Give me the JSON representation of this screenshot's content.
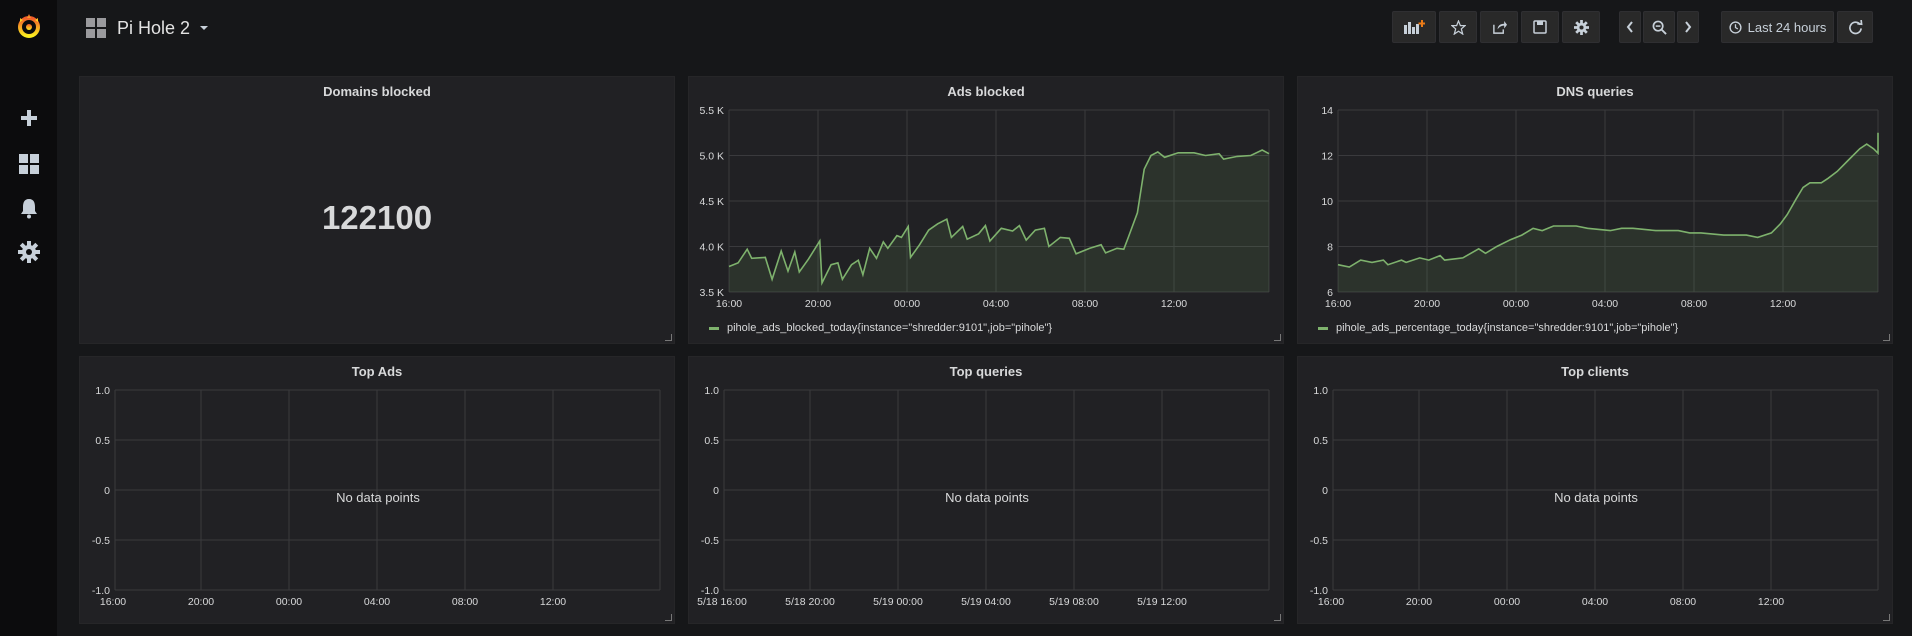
{
  "header": {
    "dashboard_title": "Pi Hole 2",
    "time_range_label": "Last 24 hours"
  },
  "sidebar": {
    "items": [
      {
        "name": "grafana-logo-icon"
      },
      {
        "name": "plus-icon"
      },
      {
        "name": "dashboards-icon"
      },
      {
        "name": "bell-icon"
      },
      {
        "name": "gear-icon"
      }
    ]
  },
  "toolbar": {
    "icons": [
      "add-panel-icon",
      "star-icon",
      "share-icon",
      "save-icon",
      "settings-icon",
      "chevron-left-icon",
      "zoom-out-icon",
      "chevron-right-icon",
      "clock-icon",
      "refresh-icon"
    ]
  },
  "colors": {
    "series_line": "#7eb26d",
    "panel_bg": "#212124",
    "page_bg": "#161719"
  },
  "panels": {
    "domains_blocked": {
      "title": "Domains blocked",
      "value": "122100"
    },
    "ads_blocked": {
      "title": "Ads blocked",
      "legend": "pihole_ads_blocked_today{instance=\"shredder:9101\",job=\"pihole\"}"
    },
    "dns_queries": {
      "title": "DNS queries",
      "legend": "pihole_ads_percentage_today{instance=\"shredder:9101\",job=\"pihole\"}"
    },
    "top_ads": {
      "title": "Top Ads",
      "no_data": "No data points"
    },
    "top_queries": {
      "title": "Top queries",
      "no_data": "No data points"
    },
    "top_clients": {
      "title": "Top clients",
      "no_data": "No data points"
    }
  },
  "chart_data": [
    {
      "panel": "Ads blocked",
      "type": "area",
      "x_ticks": [
        "16:00",
        "20:00",
        "00:00",
        "04:00",
        "08:00",
        "12:00"
      ],
      "y_ticks": [
        "5.5 K",
        "5.0 K",
        "4.5 K",
        "4.0 K",
        "3.5 K"
      ],
      "ylim": [
        3500,
        5500
      ],
      "xlim_hours": [
        0,
        23.8
      ],
      "grid": true,
      "legend_position": "bottom-left",
      "points": [
        [
          0,
          3780
        ],
        [
          0.4,
          3820
        ],
        [
          0.8,
          3970
        ],
        [
          1.0,
          3870
        ],
        [
          1.6,
          3880
        ],
        [
          1.9,
          3640
        ],
        [
          2.3,
          3950
        ],
        [
          2.6,
          3730
        ],
        [
          2.9,
          3940
        ],
        [
          3.1,
          3720
        ],
        [
          3.5,
          3860
        ],
        [
          4.0,
          4060
        ],
        [
          4.1,
          3600
        ],
        [
          4.5,
          3800
        ],
        [
          4.8,
          3820
        ],
        [
          5.0,
          3640
        ],
        [
          5.4,
          3800
        ],
        [
          5.7,
          3850
        ],
        [
          5.9,
          3690
        ],
        [
          6.2,
          3980
        ],
        [
          6.5,
          3870
        ],
        [
          6.8,
          4050
        ],
        [
          7.0,
          3980
        ],
        [
          7.4,
          4120
        ],
        [
          7.6,
          4100
        ],
        [
          7.9,
          4220
        ],
        [
          8.0,
          3880
        ],
        [
          8.4,
          4020
        ],
        [
          8.8,
          4180
        ],
        [
          9.2,
          4250
        ],
        [
          9.6,
          4300
        ],
        [
          9.8,
          4100
        ],
        [
          10.3,
          4220
        ],
        [
          10.5,
          4080
        ],
        [
          11.0,
          4140
        ],
        [
          11.3,
          4230
        ],
        [
          11.5,
          4060
        ],
        [
          12.0,
          4200
        ],
        [
          12.5,
          4170
        ],
        [
          12.8,
          4230
        ],
        [
          13.1,
          4070
        ],
        [
          13.5,
          4180
        ],
        [
          13.9,
          4200
        ],
        [
          14.1,
          4000
        ],
        [
          14.6,
          4100
        ],
        [
          15.0,
          4090
        ],
        [
          15.3,
          3920
        ],
        [
          15.9,
          3980
        ],
        [
          16.4,
          4020
        ],
        [
          16.6,
          3930
        ],
        [
          17.1,
          3980
        ],
        [
          17.4,
          3970
        ],
        [
          17.6,
          4100
        ],
        [
          18.0,
          4370
        ],
        [
          18.3,
          4850
        ],
        [
          18.6,
          5000
        ],
        [
          18.9,
          5040
        ],
        [
          19.2,
          4980
        ],
        [
          19.8,
          5030
        ],
        [
          20.5,
          5030
        ],
        [
          21.0,
          5000
        ],
        [
          21.6,
          5020
        ],
        [
          21.8,
          4960
        ],
        [
          22.4,
          4990
        ],
        [
          23.0,
          5000
        ],
        [
          23.5,
          5060
        ],
        [
          23.8,
          5020
        ]
      ]
    },
    {
      "panel": "DNS queries",
      "type": "area",
      "x_ticks": [
        "16:00",
        "20:00",
        "00:00",
        "04:00",
        "08:00",
        "12:00"
      ],
      "y_ticks": [
        "14",
        "12",
        "10",
        "8",
        "6"
      ],
      "ylim": [
        6,
        14
      ],
      "xlim_hours": [
        0,
        23.8
      ],
      "grid": true,
      "legend_position": "bottom-left",
      "points": [
        [
          0,
          7.2
        ],
        [
          0.5,
          7.1
        ],
        [
          1.0,
          7.4
        ],
        [
          1.5,
          7.3
        ],
        [
          2.0,
          7.4
        ],
        [
          2.2,
          7.2
        ],
        [
          2.8,
          7.4
        ],
        [
          3.0,
          7.3
        ],
        [
          3.6,
          7.5
        ],
        [
          4.0,
          7.4
        ],
        [
          4.5,
          7.6
        ],
        [
          4.7,
          7.4
        ],
        [
          5.5,
          7.5
        ],
        [
          6.2,
          7.9
        ],
        [
          6.5,
          7.7
        ],
        [
          7.0,
          8.0
        ],
        [
          7.6,
          8.3
        ],
        [
          8.1,
          8.5
        ],
        [
          8.6,
          8.8
        ],
        [
          9.0,
          8.7
        ],
        [
          9.5,
          8.9
        ],
        [
          10.5,
          8.9
        ],
        [
          11.0,
          8.8
        ],
        [
          12.0,
          8.7
        ],
        [
          12.5,
          8.8
        ],
        [
          13.0,
          8.8
        ],
        [
          14.0,
          8.7
        ],
        [
          15.0,
          8.7
        ],
        [
          15.5,
          8.6
        ],
        [
          16.0,
          8.6
        ],
        [
          17.0,
          8.5
        ],
        [
          18.0,
          8.5
        ],
        [
          18.5,
          8.4
        ],
        [
          19.1,
          8.6
        ],
        [
          19.5,
          9.0
        ],
        [
          19.8,
          9.4
        ],
        [
          20.2,
          10.1
        ],
        [
          20.5,
          10.6
        ],
        [
          20.8,
          10.8
        ],
        [
          21.3,
          10.8
        ],
        [
          21.6,
          11.0
        ],
        [
          22.0,
          11.3
        ],
        [
          22.5,
          11.8
        ],
        [
          23.0,
          12.3
        ],
        [
          23.3,
          12.5
        ],
        [
          23.6,
          12.3
        ],
        [
          23.9,
          12.1
        ],
        [
          24.0,
          13.0
        ]
      ]
    },
    {
      "panel": "Top Ads",
      "type": "line",
      "x_ticks": [
        "16:00",
        "20:00",
        "00:00",
        "04:00",
        "08:00",
        "12:00"
      ],
      "y_ticks": [
        "1.0",
        "0.5",
        "0",
        "-0.5",
        "-1.0"
      ],
      "ylim": [
        -1.0,
        1.0
      ],
      "grid": true,
      "series": []
    },
    {
      "panel": "Top queries",
      "type": "line",
      "x_ticks": [
        "5/18 16:00",
        "5/18 20:00",
        "5/19 00:00",
        "5/19 04:00",
        "5/19 08:00",
        "5/19 12:00"
      ],
      "y_ticks": [
        "1.0",
        "0.5",
        "0",
        "-0.5",
        "-1.0"
      ],
      "ylim": [
        -1.0,
        1.0
      ],
      "grid": true,
      "series": []
    },
    {
      "panel": "Top clients",
      "type": "line",
      "x_ticks": [
        "16:00",
        "20:00",
        "00:00",
        "04:00",
        "08:00",
        "12:00"
      ],
      "y_ticks": [
        "1.0",
        "0.5",
        "0",
        "-0.5",
        "-1.0"
      ],
      "ylim": [
        -1.0,
        1.0
      ],
      "grid": true,
      "series": []
    }
  ]
}
